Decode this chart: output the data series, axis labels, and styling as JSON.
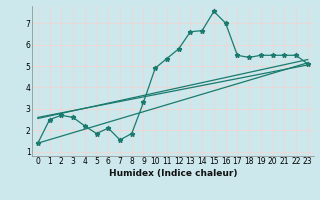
{
  "xlabel": "Humidex (Indice chaleur)",
  "bg_color": "#cce8ec",
  "grid_color": "#e8d8d8",
  "line_color": "#1a7a6e",
  "xlim": [
    -0.5,
    23.5
  ],
  "ylim": [
    0.8,
    7.8
  ],
  "xticks": [
    0,
    1,
    2,
    3,
    4,
    5,
    6,
    7,
    8,
    9,
    10,
    11,
    12,
    13,
    14,
    15,
    16,
    17,
    18,
    19,
    20,
    21,
    22,
    23
  ],
  "yticks": [
    1,
    2,
    3,
    4,
    5,
    6,
    7
  ],
  "curve1_x": [
    0,
    1,
    2,
    3,
    4,
    5,
    6,
    7,
    8,
    9,
    10,
    11,
    12,
    13,
    14,
    15,
    16,
    17,
    18,
    19,
    20,
    21,
    22,
    23
  ],
  "curve1_y": [
    1.4,
    2.5,
    2.7,
    2.6,
    2.2,
    1.85,
    2.1,
    1.55,
    1.85,
    3.3,
    4.9,
    5.35,
    5.8,
    6.6,
    6.65,
    7.55,
    7.0,
    5.5,
    5.4,
    5.5,
    5.5,
    5.5,
    5.5,
    5.1
  ],
  "line1_x": [
    0,
    23
  ],
  "line1_y": [
    1.4,
    5.15
  ],
  "line2_x": [
    0,
    23
  ],
  "line2_y": [
    2.55,
    5.3
  ],
  "line3_x": [
    0,
    23
  ],
  "line3_y": [
    2.6,
    5.05
  ],
  "tick_fontsize": 5.5,
  "xlabel_fontsize": 6.5
}
